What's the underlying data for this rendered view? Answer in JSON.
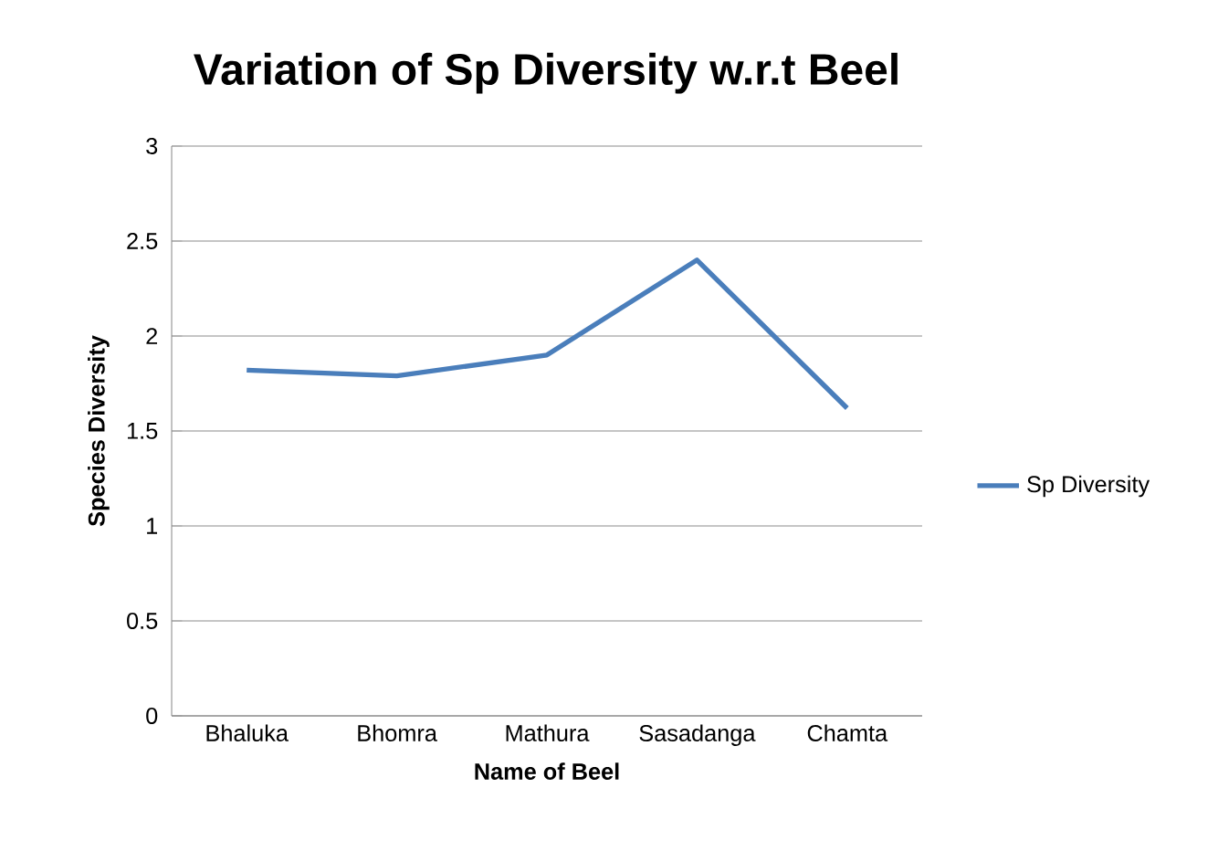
{
  "chart_data": {
    "type": "line",
    "title": "Variation of Sp Diversity w.r.t Beel",
    "xlabel": "Name of Beel",
    "ylabel": "Species Diversity",
    "categories": [
      "Bhaluka",
      "Bhomra",
      "Mathura",
      "Sasadanga",
      "Chamta"
    ],
    "series": [
      {
        "name": "Sp Diversity",
        "color": "#4a7ebb",
        "values": [
          1.82,
          1.79,
          1.9,
          2.4,
          1.62
        ]
      }
    ],
    "ylim": [
      0,
      3
    ],
    "yticks": [
      0,
      0.5,
      1,
      1.5,
      2,
      2.5,
      3
    ],
    "grid": "y",
    "legend": "right",
    "marker": "none",
    "line_style": "solid"
  }
}
